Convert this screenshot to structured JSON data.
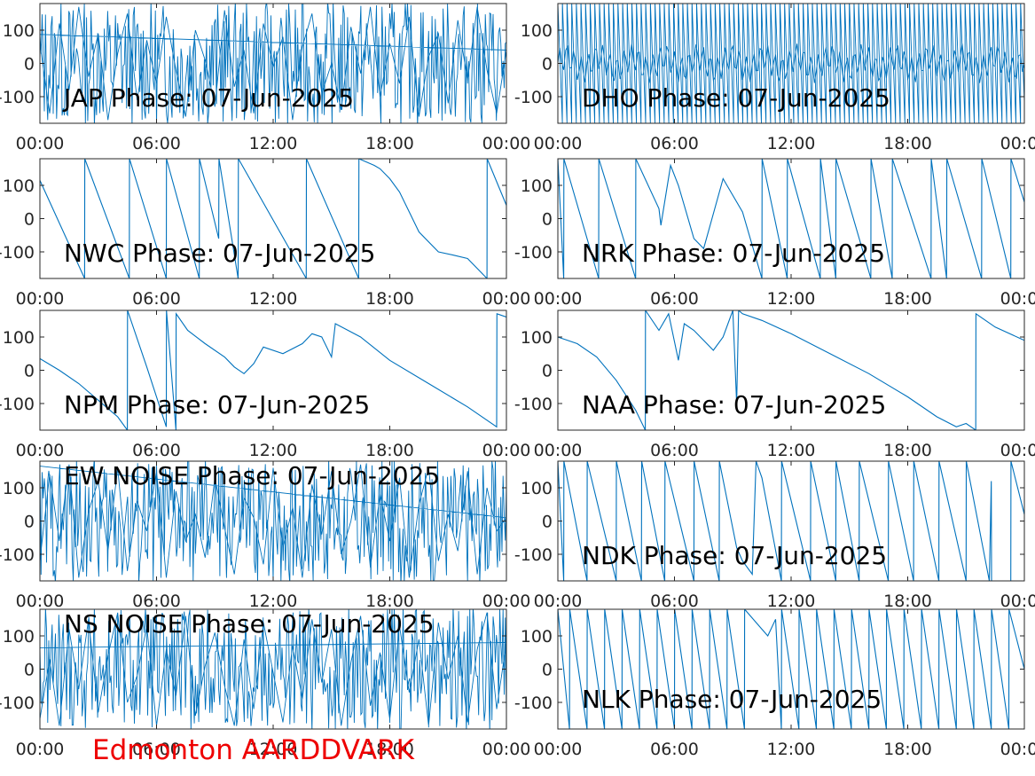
{
  "footer": {
    "label": "Edmonton AARDDVARK",
    "color": "#ee0000"
  },
  "colors": {
    "trace": "#0072bd",
    "axes": "#262626"
  },
  "chart_data": [
    {
      "type": "line",
      "title": "JAP Phase: 07-Jun-2025",
      "x_ticks": [
        "00:00",
        "06:00",
        "12:00",
        "18:00",
        "00:00"
      ],
      "y_ticks": [
        "-100",
        "0",
        "100"
      ],
      "ylim": [
        -180,
        180
      ],
      "xlim_hours": [
        0,
        24
      ],
      "pattern": "noise",
      "x": [
        0,
        0.5,
        1,
        1.5,
        2,
        2.5,
        3,
        3.5,
        4,
        4.5,
        5,
        5.5,
        6,
        6.5,
        7,
        7.5,
        8,
        8.5,
        9,
        9.5,
        10,
        10.5,
        11,
        11.5,
        12,
        12.5,
        13,
        13.5,
        14,
        14.5,
        15,
        15.5,
        16,
        16.5,
        17,
        17.5,
        18,
        18.5,
        19,
        19.5,
        20,
        20.5,
        21,
        21.5,
        22,
        22.5,
        23,
        23.5,
        24
      ],
      "y": [
        60,
        -150,
        120,
        -80,
        170,
        -40,
        90,
        -170,
        30,
        150,
        -110,
        70,
        -60,
        140,
        -20,
        -160,
        100,
        10,
        -130,
        160,
        -70,
        40,
        -150,
        120,
        -10,
        80,
        -170,
        50,
        150,
        -90,
        0,
        -140,
        110,
        -30,
        170,
        -100,
        60,
        -60,
        140,
        -160,
        20,
        90,
        -120,
        130,
        -50,
        170,
        -20,
        -150,
        40
      ],
      "annotations": []
    },
    {
      "type": "line",
      "title": "DHO Phase: 07-Jun-2025",
      "x_ticks": [
        "00:00",
        "06:00",
        "12:00",
        "18:00",
        "00:00"
      ],
      "y_ticks": [
        "-100",
        "0",
        "100"
      ],
      "ylim": [
        -180,
        180
      ],
      "xlim_hours": [
        0,
        24
      ],
      "pattern": "dense-sawtooth",
      "x": [
        0,
        24
      ],
      "y": [
        0,
        0
      ],
      "cycles_per_hour": 4.2
    },
    {
      "type": "line",
      "title": "NWC Phase: 07-Jun-2025",
      "x_ticks": [
        "00:00",
        "06:00",
        "12:00",
        "18:00",
        "00:00"
      ],
      "y_ticks": [
        "-100",
        "0",
        "100"
      ],
      "ylim": [
        -180,
        180
      ],
      "xlim_hours": [
        0,
        24
      ],
      "pattern": "sawtooth",
      "x": [
        0,
        2.3,
        2.31,
        4.6,
        4.61,
        6.5,
        6.51,
        8.2,
        8.21,
        9.2,
        9.21,
        10.2,
        10.21,
        13.7,
        13.71,
        16.4,
        16.41,
        17.2,
        17.5,
        18.0,
        18.5,
        19.5,
        20.5,
        21.3,
        22.0,
        23.0,
        23.01,
        24
      ],
      "y": [
        115,
        -180,
        180,
        -180,
        180,
        -180,
        180,
        -180,
        180,
        -60,
        180,
        -180,
        180,
        -180,
        180,
        -180,
        180,
        160,
        150,
        120,
        80,
        -40,
        -100,
        -110,
        -120,
        -180,
        180,
        40
      ]
    },
    {
      "type": "line",
      "title": "NRK Phase: 07-Jun-2025",
      "x_ticks": [
        "00:00",
        "06:00",
        "12:00",
        "18:00",
        "00:00"
      ],
      "y_ticks": [
        "-100",
        "0",
        "100"
      ],
      "ylim": [
        -180,
        180
      ],
      "xlim_hours": [
        0,
        24
      ],
      "pattern": "sawtooth",
      "x": [
        0,
        0.3,
        0.31,
        2.1,
        2.11,
        4.0,
        4.01,
        5.2,
        5.3,
        5.8,
        6.2,
        6.5,
        7.0,
        7.5,
        8.5,
        9.5,
        10.5,
        10.51,
        11.8,
        11.81,
        13.5,
        13.51,
        14.3,
        14.31,
        16.1,
        16.11,
        17.2,
        17.21,
        19.2,
        19.21,
        20.0,
        20.01,
        21.8,
        21.81,
        23.3,
        23.31,
        24
      ],
      "y": [
        180,
        -180,
        180,
        -180,
        180,
        -180,
        180,
        30,
        -20,
        160,
        100,
        40,
        -60,
        -90,
        120,
        20,
        -180,
        180,
        -180,
        180,
        -180,
        180,
        -180,
        180,
        -180,
        180,
        -180,
        180,
        -180,
        180,
        -180,
        180,
        -180,
        180,
        -180,
        180,
        50
      ]
    },
    {
      "type": "line",
      "title": "NPM Phase: 07-Jun-2025",
      "x_ticks": [
        "00:00",
        "06:00",
        "12:00",
        "18:00",
        "00:00"
      ],
      "y_ticks": [
        "-100",
        "0",
        "100"
      ],
      "ylim": [
        -180,
        180
      ],
      "xlim_hours": [
        0,
        24
      ],
      "pattern": "curve",
      "x": [
        0,
        1,
        2,
        3,
        4,
        4.5,
        4.51,
        5.5,
        6.5,
        6.51,
        7.0,
        7.01,
        7.6,
        8.5,
        9.5,
        10.0,
        10.5,
        11.0,
        11.5,
        12.5,
        13.5,
        14.0,
        14.5,
        15.0,
        15.2,
        16.5,
        18.0,
        20.0,
        22.0,
        23.5,
        23.51,
        24
      ],
      "y": [
        35,
        0,
        -40,
        -90,
        -140,
        -180,
        180,
        10,
        -170,
        180,
        -180,
        170,
        120,
        80,
        40,
        10,
        -10,
        20,
        70,
        50,
        80,
        110,
        100,
        40,
        140,
        100,
        30,
        -40,
        -110,
        -170,
        170,
        160
      ]
    },
    {
      "type": "line",
      "title": "NAA Phase: 07-Jun-2025",
      "x_ticks": [
        "00:00",
        "06:00",
        "12:00",
        "18:00",
        "00:00"
      ],
      "y_ticks": [
        "-100",
        "0",
        "100"
      ],
      "ylim": [
        -180,
        180
      ],
      "xlim_hours": [
        0,
        24
      ],
      "pattern": "curve",
      "x": [
        0,
        1,
        2,
        3,
        4,
        4.5,
        4.51,
        5.2,
        5.7,
        6.2,
        6.5,
        7.0,
        7.5,
        8.0,
        8.5,
        9.0,
        9.2,
        9.3,
        9.5,
        10.5,
        12,
        14,
        16,
        18,
        19.5,
        20.5,
        21,
        21.5,
        21.51,
        22.5,
        24
      ],
      "y": [
        100,
        80,
        40,
        -30,
        -120,
        -180,
        180,
        120,
        170,
        30,
        140,
        120,
        90,
        60,
        100,
        180,
        -100,
        180,
        170,
        150,
        110,
        50,
        -10,
        -80,
        -140,
        -170,
        -160,
        -180,
        170,
        130,
        90
      ]
    },
    {
      "type": "line",
      "title": "EW NOISE Phase: 07-Jun-2025",
      "x_ticks": [
        "00:00",
        "06:00",
        "12:00",
        "18:00",
        "00:00"
      ],
      "y_ticks": [
        "-100",
        "0",
        "100"
      ],
      "ylim": [
        -180,
        180
      ],
      "xlim_hours": [
        0,
        24
      ],
      "pattern": "noise",
      "x": [
        0,
        0.5,
        1,
        1.5,
        2,
        2.5,
        3,
        3.5,
        4,
        4.5,
        5,
        5.5,
        6,
        6.5,
        7,
        7.5,
        8,
        8.5,
        9,
        9.5,
        10,
        10.5,
        11,
        11.5,
        12,
        12.5,
        13,
        13.5,
        14,
        14.5,
        15,
        15.5,
        16,
        16.5,
        17,
        17.5,
        18,
        18.5,
        19,
        19.5,
        20,
        20.5,
        21,
        21.5,
        22,
        22.5,
        23,
        23.5,
        24
      ],
      "y": [
        -120,
        140,
        -60,
        170,
        -170,
        30,
        120,
        -90,
        160,
        -150,
        60,
        -30,
        150,
        -170,
        90,
        -60,
        20,
        -110,
        130,
        -20,
        -160,
        70,
        10,
        -130,
        160,
        -80,
        40,
        -170,
        110,
        -40,
        150,
        -100,
        0,
        170,
        -140,
        80,
        -60,
        130,
        -170,
        50,
        160,
        -120,
        20,
        -90,
        150,
        -160,
        100,
        -30,
        10
      ]
    },
    {
      "type": "line",
      "title": "NDK Phase: 07-Jun-2025",
      "x_ticks": [
        "00:00",
        "06:00",
        "12:00",
        "18:00",
        "00:00"
      ],
      "y_ticks": [
        "-100",
        "0",
        "100"
      ],
      "ylim": [
        -180,
        180
      ],
      "xlim_hours": [
        0,
        24
      ],
      "pattern": "sawtooth",
      "x": [
        0,
        0.3,
        0.31,
        1.5,
        1.51,
        3.0,
        3.01,
        4.3,
        4.31,
        5.5,
        5.51,
        7.0,
        7.01,
        8.3,
        8.31,
        9.2,
        9.5,
        10.0,
        10.2,
        10.5,
        11.5,
        11.51,
        13,
        13.01,
        14.3,
        14.31,
        15.5,
        15.51,
        17,
        17.01,
        18.3,
        18.31,
        19.6,
        19.61,
        21,
        21.01,
        22.2,
        22.3,
        22.31,
        23.3,
        23.31,
        24
      ],
      "y": [
        180,
        -180,
        180,
        -180,
        180,
        -180,
        180,
        -180,
        180,
        -180,
        180,
        -180,
        180,
        -180,
        180,
        -80,
        -120,
        -160,
        180,
        130,
        -180,
        180,
        -180,
        180,
        -180,
        180,
        -180,
        180,
        -180,
        180,
        -180,
        180,
        -180,
        180,
        -180,
        180,
        -180,
        120,
        -180,
        -180,
        180,
        20
      ]
    },
    {
      "type": "line",
      "title": "NS NOISE Phase: 07-Jun-2025",
      "x_ticks": [
        "00:00",
        "06:00",
        "12:00",
        "18:00",
        "00:00"
      ],
      "y_ticks": [
        "-100",
        "0",
        "100"
      ],
      "ylim": [
        -180,
        180
      ],
      "xlim_hours": [
        0,
        24
      ],
      "pattern": "noise",
      "x": [
        0,
        0.5,
        1,
        1.5,
        2,
        2.5,
        3,
        3.5,
        4,
        4.5,
        5,
        5.5,
        6,
        6.5,
        7,
        7.5,
        8,
        8.5,
        9,
        9.5,
        10,
        10.5,
        11,
        11.5,
        12,
        12.5,
        13,
        13.5,
        14,
        14.5,
        15,
        15.5,
        16,
        16.5,
        17,
        17.5,
        18,
        18.5,
        19,
        19.5,
        20,
        20.5,
        21,
        21.5,
        22,
        22.5,
        23,
        23.5,
        24
      ],
      "y": [
        -150,
        30,
        -170,
        120,
        -60,
        150,
        -130,
        40,
        170,
        -100,
        -20,
        130,
        -170,
        60,
        -80,
        160,
        -140,
        10,
        110,
        -50,
        -170,
        90,
        -120,
        140,
        -10,
        -160,
        70,
        -90,
        150,
        -40,
        120,
        -170,
        20,
        160,
        -110,
        50,
        -150,
        130,
        -70,
        90,
        -170,
        140,
        -30,
        100,
        -160,
        60,
        170,
        -120,
        80
      ]
    },
    {
      "type": "line",
      "title": "NLK Phase: 07-Jun-2025",
      "x_ticks": [
        "00:00",
        "06:00",
        "12:00",
        "18:00",
        "00:00"
      ],
      "y_ticks": [
        "-100",
        "0",
        "100"
      ],
      "ylim": [
        -180,
        180
      ],
      "xlim_hours": [
        0,
        24
      ],
      "pattern": "sawtooth",
      "x": [
        0,
        0.6,
        0.61,
        1.5,
        1.51,
        2.4,
        2.41,
        3.3,
        3.31,
        4.2,
        4.21,
        5.1,
        5.11,
        6.0,
        6.01,
        6.9,
        6.91,
        7.8,
        7.81,
        8.7,
        8.71,
        9.6,
        9.61,
        10.5,
        10.8,
        11.2,
        11.5,
        11.51,
        12.4,
        12.41,
        13.3,
        13.31,
        14.2,
        14.21,
        15.1,
        15.11,
        16.0,
        16.01,
        16.9,
        16.91,
        17.8,
        17.81,
        18.7,
        18.71,
        19.6,
        19.61,
        20.5,
        20.51,
        21.4,
        21.41,
        22.3,
        22.31,
        23.2,
        23.21,
        24
      ],
      "y": [
        180,
        -180,
        180,
        -180,
        180,
        -180,
        180,
        -180,
        180,
        -180,
        180,
        -180,
        180,
        -180,
        180,
        -180,
        180,
        -180,
        180,
        -180,
        180,
        -180,
        180,
        120,
        100,
        150,
        -180,
        180,
        -180,
        180,
        -180,
        180,
        -180,
        180,
        -180,
        180,
        -180,
        180,
        -180,
        180,
        -180,
        180,
        -180,
        180,
        -180,
        180,
        -180,
        180,
        -180,
        180,
        -180,
        180,
        -180,
        180,
        0
      ]
    }
  ]
}
